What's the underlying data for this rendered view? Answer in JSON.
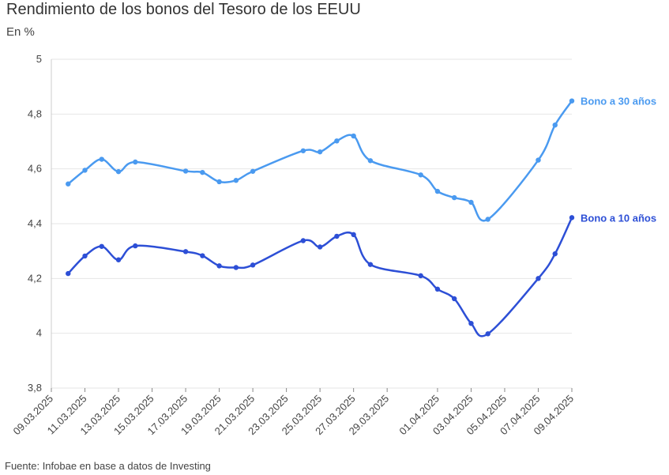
{
  "chart_data": {
    "type": "line",
    "title": "Rendimiento de los bonos del Tesoro de los EEUU",
    "subtitle": "En %",
    "source": "Fuente: Infobae en base a datos de Investing",
    "ylim": [
      3.8,
      5
    ],
    "yticks": [
      "3,8",
      "4",
      "4,2",
      "4,4",
      "4,6",
      "4,8",
      "5"
    ],
    "ytick_values": [
      3.8,
      4.0,
      4.2,
      4.4,
      4.6,
      4.8,
      5.0
    ],
    "xlim": [
      "2025-03-09",
      "2025-04-09"
    ],
    "xticks": [
      "09.03.2025",
      "11.03.2025",
      "13.03.2025",
      "15.03.2025",
      "17.03.2025",
      "19.03.2025",
      "21.03.2025",
      "23.03.2025",
      "25.03.2025",
      "27.03.2025",
      "29.03.2025",
      "01.04.2025",
      "03.04.2025",
      "05.04.2025",
      "07.04.2025",
      "09.04.2025"
    ],
    "xtick_dates": [
      "2025-03-09",
      "2025-03-11",
      "2025-03-13",
      "2025-03-15",
      "2025-03-17",
      "2025-03-19",
      "2025-03-21",
      "2025-03-23",
      "2025-03-25",
      "2025-03-27",
      "2025-03-29",
      "2025-04-01",
      "2025-04-03",
      "2025-04-05",
      "2025-04-07",
      "2025-04-09"
    ],
    "grid": true,
    "series": [
      {
        "name": "Bono a 30 años",
        "color": "#4a9af0",
        "x": [
          "2025-03-10",
          "2025-03-11",
          "2025-03-12",
          "2025-03-13",
          "2025-03-14",
          "2025-03-17",
          "2025-03-18",
          "2025-03-19",
          "2025-03-20",
          "2025-03-21",
          "2025-03-24",
          "2025-03-25",
          "2025-03-26",
          "2025-03-27",
          "2025-03-28",
          "2025-03-31",
          "2025-04-01",
          "2025-04-02",
          "2025-04-03",
          "2025-04-04",
          "2025-04-07",
          "2025-04-08",
          "2025-04-09"
        ],
        "values": [
          4.545,
          4.595,
          4.635,
          4.59,
          4.625,
          4.592,
          4.587,
          4.553,
          4.558,
          4.591,
          4.666,
          4.662,
          4.702,
          4.72,
          4.63,
          4.578,
          4.518,
          4.495,
          4.478,
          4.416,
          4.632,
          4.76,
          4.848
        ]
      },
      {
        "name": "Bono a 10 años",
        "color": "#2d4fd6",
        "x": [
          "2025-03-10",
          "2025-03-11",
          "2025-03-12",
          "2025-03-13",
          "2025-03-14",
          "2025-03-17",
          "2025-03-18",
          "2025-03-19",
          "2025-03-20",
          "2025-03-21",
          "2025-03-24",
          "2025-03-25",
          "2025-03-26",
          "2025-03-27",
          "2025-03-28",
          "2025-03-31",
          "2025-04-01",
          "2025-04-02",
          "2025-04-03",
          "2025-04-04",
          "2025-04-07",
          "2025-04-08",
          "2025-04-09"
        ],
        "values": [
          4.218,
          4.282,
          4.317,
          4.268,
          4.319,
          4.298,
          4.283,
          4.246,
          4.24,
          4.249,
          4.338,
          4.315,
          4.354,
          4.36,
          4.251,
          4.21,
          4.161,
          4.126,
          4.036,
          3.998,
          4.2,
          4.29,
          4.422
        ]
      }
    ]
  }
}
